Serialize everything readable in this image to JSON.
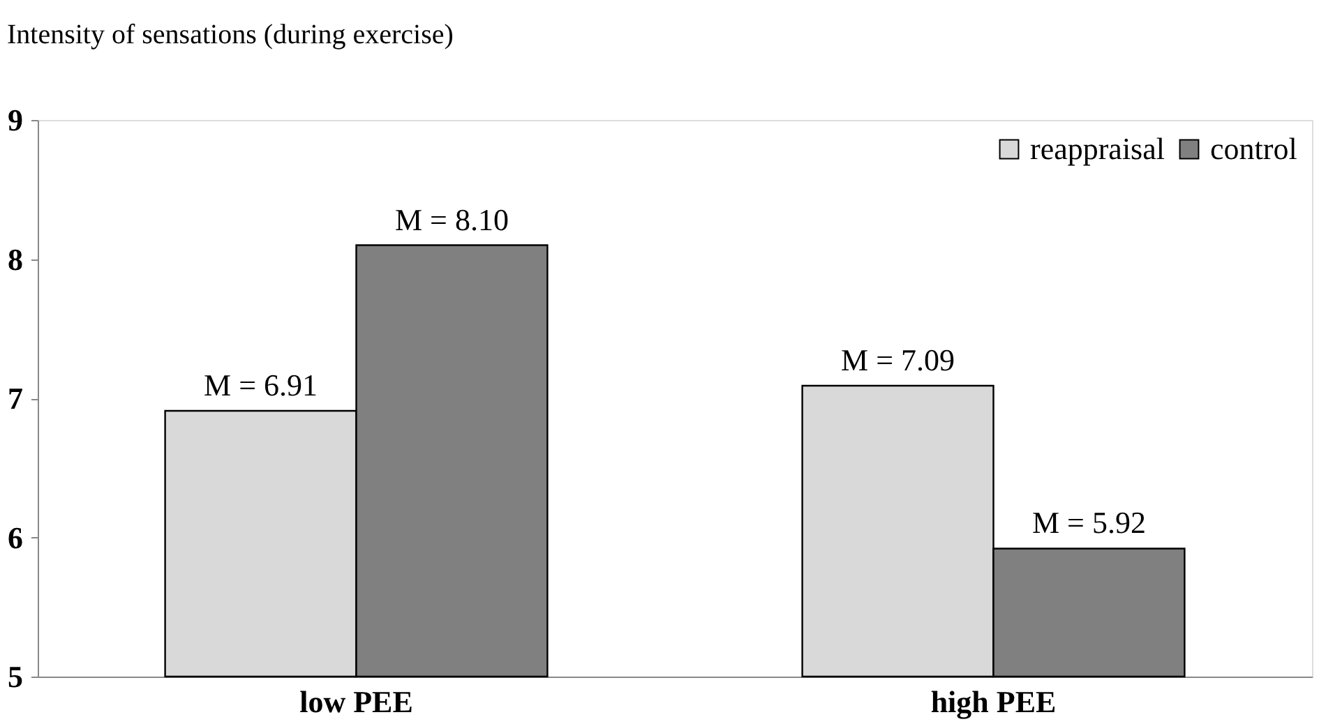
{
  "chart_data": {
    "type": "bar",
    "title": "Intensity of sensations (during exercise)",
    "categories": [
      "low PEE",
      "high PEE"
    ],
    "series": [
      {
        "name": "reappraisal",
        "color": "#d9d9d9",
        "values": [
          6.91,
          7.09
        ],
        "value_labels": [
          "M = 6.91",
          "M = 7.09"
        ]
      },
      {
        "name": "control",
        "color": "#808080",
        "values": [
          8.1,
          5.92
        ],
        "value_labels": [
          "M = 8.10",
          "M = 5.92"
        ]
      }
    ],
    "ylim": [
      5,
      9
    ],
    "yticks": [
      5,
      6,
      7,
      8,
      9
    ],
    "grid": false,
    "legend": "top right"
  }
}
